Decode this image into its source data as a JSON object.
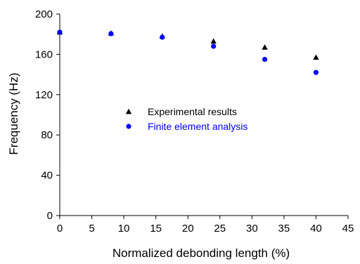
{
  "chart_data": {
    "type": "scatter",
    "xlabel": "Normalized debonding length (%)",
    "ylabel": "Frequency (Hz)",
    "xlim": [
      0,
      45
    ],
    "ylim": [
      0,
      200
    ],
    "xticks": [
      0,
      5,
      10,
      15,
      20,
      25,
      30,
      35,
      40,
      45
    ],
    "yticks": [
      0,
      40,
      80,
      120,
      160,
      200
    ],
    "grid": false,
    "legend_position": "center",
    "series": [
      {
        "name": "Experimental results",
        "marker": "triangle",
        "color": "#000000",
        "x": [
          0,
          8,
          16,
          24,
          32,
          40
        ],
        "y": [
          182,
          181,
          178,
          173,
          167,
          157
        ]
      },
      {
        "name": "Finite element analysis",
        "marker": "circle",
        "color": "#0000ff",
        "x": [
          0,
          8,
          16,
          24,
          32,
          40
        ],
        "y": [
          182,
          180.5,
          177,
          168,
          155,
          142
        ]
      }
    ]
  }
}
